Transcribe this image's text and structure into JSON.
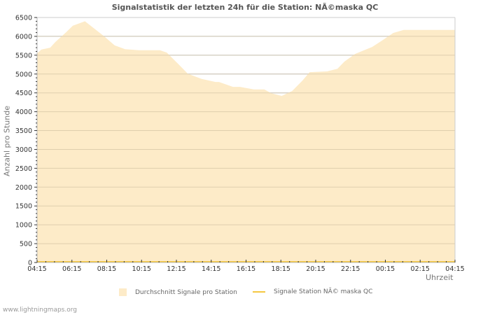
{
  "title": "Signalstatistik der letzten 24h für die Station: NÃ©maska QC",
  "footer": "www.lightningmaps.org",
  "colors": {
    "area_fill": "#fdebc8",
    "line": "#f5c842",
    "grid": "#cccccc",
    "axis_text": "#333333"
  },
  "chart_data": {
    "type": "area",
    "title": "Signalstatistik der letzten 24h für die Station: NÃ©maska QC",
    "xlabel": "Uhrzeit",
    "ylabel": "Anzahl pro Stunde",
    "ylim": [
      0,
      6500
    ],
    "yticks": [
      0,
      500,
      1000,
      1500,
      2000,
      2500,
      3000,
      3500,
      4000,
      4500,
      5000,
      5500,
      6000,
      6500
    ],
    "xtick_labels": [
      "04:15",
      "06:15",
      "08:15",
      "10:15",
      "12:15",
      "14:15",
      "16:15",
      "18:15",
      "20:15",
      "22:15",
      "00:15",
      "02:15",
      "04:15"
    ],
    "grid": true,
    "legend_position": "bottom",
    "x_hours": [
      0,
      0.25,
      0.75,
      1.05,
      1.65,
      2.05,
      2.75,
      3.25,
      3.85,
      4.45,
      5.05,
      5.85,
      7.05,
      7.45,
      8.25,
      8.65,
      9.45,
      10.25,
      10.45,
      11.25,
      11.65,
      12.45,
      13.05,
      13.45,
      14.05,
      14.65,
      15.25,
      15.65,
      16.65,
      17.25,
      17.65,
      18.25,
      19.25,
      19.85,
      20.45,
      21.05,
      21.65,
      22.45,
      23.05,
      23.45,
      24.0
    ],
    "series": [
      {
        "name": "Durchschnitt Signale pro Station",
        "type": "area",
        "values": [
          5550,
          5650,
          5700,
          5850,
          6100,
          6280,
          6400,
          6220,
          6000,
          5760,
          5660,
          5630,
          5630,
          5570,
          5200,
          5010,
          4870,
          4790,
          4790,
          4660,
          4660,
          4590,
          4590,
          4490,
          4420,
          4550,
          4830,
          5050,
          5070,
          5140,
          5330,
          5530,
          5720,
          5900,
          6090,
          6170,
          6170,
          6170,
          6170,
          6170,
          6170
        ]
      },
      {
        "name": "Signale Station NÃ© maska QC",
        "type": "line",
        "values": [
          0,
          0,
          0,
          0,
          0,
          0,
          0,
          0,
          0,
          0,
          0,
          0,
          0,
          0,
          0,
          0,
          0,
          0,
          0,
          0,
          0,
          0,
          0,
          0,
          0,
          0,
          0,
          0,
          0,
          0,
          0,
          0,
          0,
          0,
          0,
          0,
          0,
          0,
          0,
          0,
          0
        ]
      }
    ]
  },
  "legend": [
    {
      "label": "Durchschnitt Signale pro Station"
    },
    {
      "label": "Signale Station NÃ© maska QC"
    }
  ]
}
